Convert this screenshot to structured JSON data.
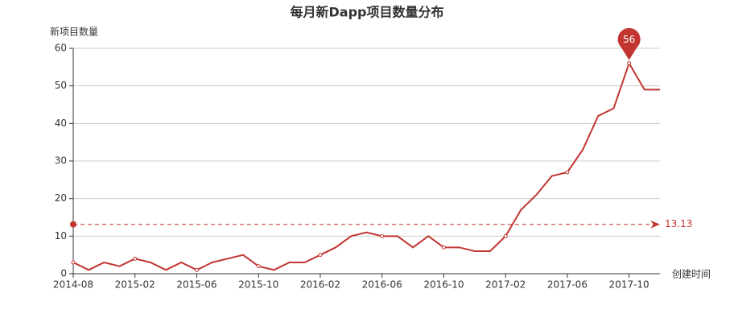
{
  "chart_data": {
    "type": "line",
    "title": "每月新Dapp项目数量分布",
    "y_axis_label": "新项目数量",
    "x_axis_label": "创建时间",
    "categories": [
      "2014-08",
      null,
      null,
      null,
      "2015-02",
      null,
      null,
      null,
      "2015-06",
      null,
      null,
      null,
      "2015-10",
      null,
      null,
      null,
      "2016-02",
      null,
      null,
      null,
      "2016-06",
      null,
      null,
      null,
      "2016-10",
      null,
      null,
      null,
      "2017-02",
      null,
      null,
      null,
      "2017-06",
      null,
      null,
      null,
      "2017-10",
      null,
      null
    ],
    "series": [
      {
        "name": "新项目数量",
        "color": "#c23531",
        "values": [
          3,
          1,
          3,
          2,
          4,
          3,
          1,
          3,
          1,
          3,
          4,
          5,
          2,
          1,
          3,
          3,
          5,
          7,
          10,
          11,
          10,
          10,
          7,
          10,
          7,
          7,
          6,
          6,
          10,
          17,
          21,
          26,
          27,
          33,
          42,
          44,
          56,
          49,
          49
        ]
      }
    ],
    "average": 13.13,
    "ylim": [
      0,
      60
    ],
    "yticks": [
      0,
      10,
      20,
      30,
      40,
      50,
      60
    ],
    "grid": true
  }
}
